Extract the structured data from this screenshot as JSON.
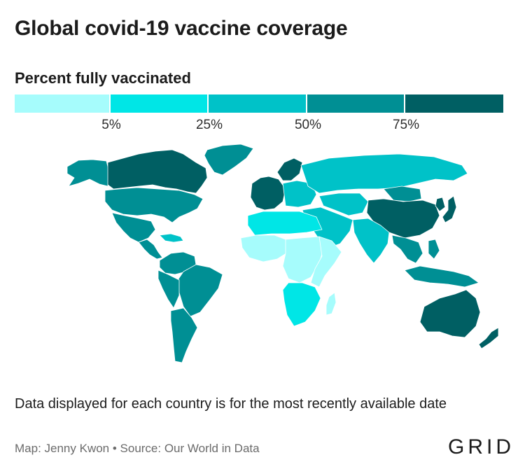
{
  "header": {
    "title": "Global covid-19 vaccine coverage"
  },
  "legend": {
    "title": "Percent fully vaccinated",
    "colors": [
      "#a6fcfc",
      "#00e6e6",
      "#00c2c8",
      "#008f94",
      "#005f63"
    ],
    "ticks": [
      "5%",
      "25%",
      "50%",
      "75%"
    ],
    "breaks": [
      0,
      5,
      25,
      50,
      75,
      100
    ]
  },
  "map": {
    "projection": "world",
    "regions": [
      {
        "name": "Canada",
        "class": 5
      },
      {
        "name": "Alaska",
        "class": 4
      },
      {
        "name": "Greenland",
        "class": 4
      },
      {
        "name": "United States",
        "class": 4
      },
      {
        "name": "Mexico",
        "class": 4
      },
      {
        "name": "Central America",
        "class": 4
      },
      {
        "name": "Caribbean",
        "class": 3
      },
      {
        "name": "Northern South America",
        "class": 4
      },
      {
        "name": "Brazil",
        "class": 4
      },
      {
        "name": "Andean South America",
        "class": 4
      },
      {
        "name": "Southern Cone",
        "class": 4
      },
      {
        "name": "Western Europe",
        "class": 5
      },
      {
        "name": "Eastern Europe",
        "class": 3
      },
      {
        "name": "Russia",
        "class": 3
      },
      {
        "name": "Central Asia",
        "class": 3
      },
      {
        "name": "Middle East",
        "class": 3
      },
      {
        "name": "North Africa",
        "class": 2
      },
      {
        "name": "West Africa",
        "class": 1
      },
      {
        "name": "Central Africa",
        "class": 1
      },
      {
        "name": "East Africa",
        "class": 1
      },
      {
        "name": "Southern Africa",
        "class": 2
      },
      {
        "name": "Madagascar",
        "class": 1
      },
      {
        "name": "India",
        "class": 3
      },
      {
        "name": "China",
        "class": 5
      },
      {
        "name": "Mongolia",
        "class": 4
      },
      {
        "name": "Japan",
        "class": 5
      },
      {
        "name": "Southeast Asia",
        "class": 4
      },
      {
        "name": "Indonesia",
        "class": 4
      },
      {
        "name": "Australia",
        "class": 5
      },
      {
        "name": "New Zealand",
        "class": 5
      }
    ]
  },
  "footer": {
    "note": "Data displayed for each country is for the most recently available date",
    "credit": "Map: Jenny Kwon • Source: Our World in Data",
    "logo": "GRID"
  }
}
